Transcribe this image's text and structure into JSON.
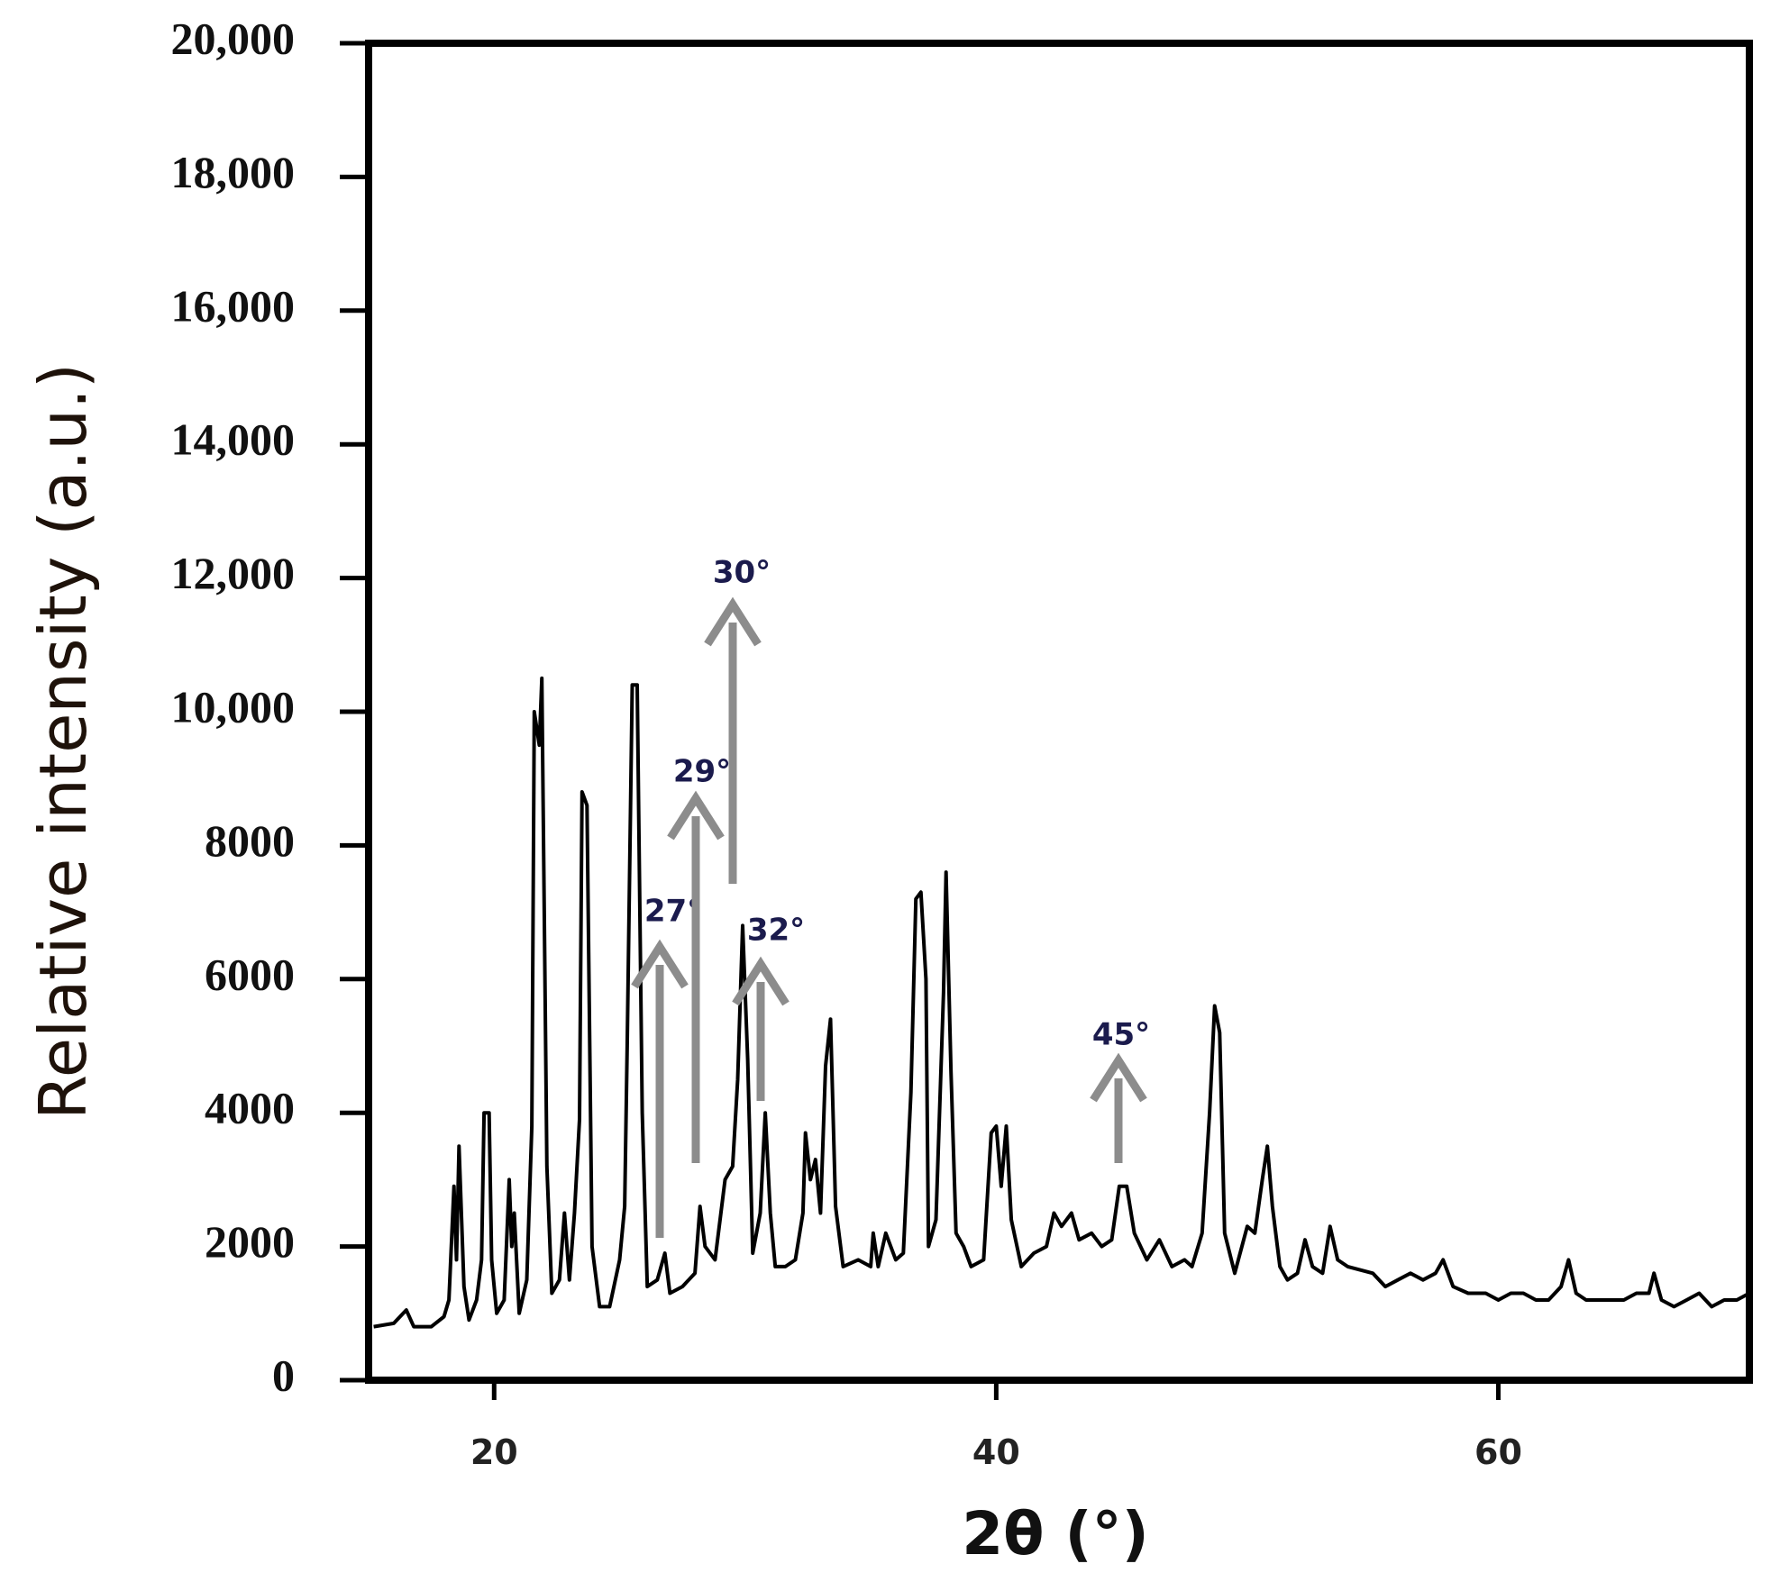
{
  "chart_data": {
    "type": "line",
    "xlabel": "2θ (°)",
    "ylabel": "Relative intensity (a.u.)",
    "xlim": [
      15,
      70
    ],
    "xticks": [
      20,
      40,
      60
    ],
    "ylim": [
      0,
      20000
    ],
    "yticks": [
      0,
      2000,
      4000,
      6000,
      8000,
      {
        "value": 10000,
        "label": "10,000"
      },
      {
        "value": 12000,
        "label": "12,000"
      },
      {
        "value": 14000,
        "label": "14,000"
      },
      {
        "value": 16000,
        "label": "16,000"
      },
      {
        "value": 18000,
        "label": "18,000"
      },
      {
        "value": 20000,
        "label": "20,000"
      }
    ],
    "color": "#000000",
    "annotations": [
      {
        "text": "27°"
      },
      {
        "text": "29°"
      },
      {
        "text": "30°"
      },
      {
        "text": "32°"
      },
      {
        "text": "45°"
      }
    ],
    "x": [
      15.2,
      16,
      16.5,
      16.8,
      17.5,
      18,
      18.2,
      18.4,
      18.5,
      18.6,
      18.8,
      19,
      19.3,
      19.5,
      19.6,
      19.8,
      19.9,
      20.1,
      20.4,
      20.6,
      20.7,
      20.8,
      21,
      21.3,
      21.5,
      21.6,
      21.8,
      21.9,
      22.1,
      22.3,
      22.6,
      22.8,
      23,
      23.2,
      23.4,
      23.5,
      23.7,
      23.9,
      24.2,
      24.6,
      25,
      25.2,
      25.3,
      25.5,
      25.7,
      25.9,
      26.1,
      26.5,
      26.8,
      27,
      27.5,
      28,
      28.2,
      28.4,
      28.8,
      29.2,
      29.5,
      29.7,
      29.9,
      30.1,
      30.3,
      30.6,
      30.8,
      31,
      31.2,
      31.6,
      32,
      32.3,
      32.4,
      32.6,
      32.8,
      33,
      33.2,
      33.4,
      33.6,
      33.9,
      34.5,
      35,
      35.1,
      35.3,
      35.6,
      36,
      36.3,
      36.6,
      36.8,
      37,
      37.2,
      37.3,
      37.6,
      37.9,
      38,
      38.2,
      38.4,
      38.7,
      39,
      39.5,
      39.8,
      40,
      40.2,
      40.4,
      40.6,
      41,
      41.5,
      42,
      42.3,
      42.6,
      43,
      43.3,
      43.8,
      44.2,
      44.6,
      44.9,
      45.2,
      45.5,
      46,
      46.5,
      47,
      47.5,
      47.8,
      48.2,
      48.5,
      48.7,
      48.9,
      49.1,
      49.5,
      50,
      50.3,
      50.6,
      50.8,
      51,
      51.3,
      51.6,
      52,
      52.3,
      52.6,
      53,
      53.3,
      53.6,
      54,
      55,
      55.5,
      56,
      56.5,
      57,
      57.5,
      57.8,
      58.2,
      58.8,
      59.5,
      60,
      60.5,
      61,
      61.5,
      62,
      62.5,
      62.8,
      63.1,
      63.5,
      64,
      65,
      65.5,
      66,
      66.2,
      66.5,
      67,
      67.5,
      68,
      68.5,
      69,
      69.5,
      70
    ],
    "values": [
      800,
      850,
      1050,
      800,
      800,
      950,
      1200,
      2900,
      1800,
      3500,
      1400,
      900,
      1200,
      1800,
      4000,
      4000,
      1800,
      1000,
      1200,
      3000,
      2000,
      2500,
      1000,
      1500,
      3800,
      10000,
      9500,
      10500,
      3200,
      1300,
      1500,
      2500,
      1500,
      2500,
      3900,
      8800,
      8600,
      2000,
      1100,
      1100,
      1800,
      2600,
      5000,
      10400,
      10400,
      4000,
      1400,
      1500,
      1900,
      1300,
      1400,
      1600,
      2600,
      2000,
      1800,
      3000,
      3200,
      4500,
      6800,
      4800,
      1900,
      2500,
      4000,
      2500,
      1700,
      1700,
      1800,
      2500,
      3700,
      3000,
      3300,
      2500,
      4700,
      5400,
      2600,
      1700,
      1800,
      1700,
      2200,
      1700,
      2200,
      1800,
      1900,
      4300,
      7200,
      7300,
      6000,
      2000,
      2400,
      5800,
      7600,
      4600,
      2200,
      2000,
      1700,
      1800,
      3700,
      3800,
      2900,
      3800,
      2400,
      1700,
      1900,
      2000,
      2500,
      2300,
      2500,
      2100,
      2200,
      2000,
      2100,
      2900,
      2900,
      2200,
      1800,
      2100,
      1700,
      1800,
      1700,
      2200,
      4000,
      5600,
      5200,
      2200,
      1600,
      2300,
      2200,
      3000,
      3500,
      2600,
      1700,
      1500,
      1600,
      2100,
      1700,
      1600,
      2300,
      1800,
      1700,
      1600,
      1400,
      1500,
      1600,
      1500,
      1600,
      1800,
      1400,
      1300,
      1300,
      1200,
      1300,
      1300,
      1200,
      1200,
      1400,
      1800,
      1300,
      1200,
      1200,
      1200,
      1300,
      1300,
      1600,
      1200,
      1100,
      1200,
      1300,
      1100,
      1200,
      1200,
      1300
    ]
  }
}
